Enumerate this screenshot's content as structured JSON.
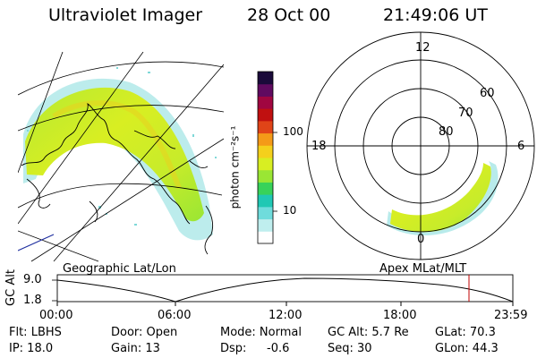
{
  "header": {
    "instrument": "Ultraviolet Imager",
    "date": "28 Oct 00",
    "time": "21:49:06 UT"
  },
  "colorbar": {
    "unit_label": "photon cm⁻²s⁻¹",
    "ticks": [
      "100",
      "10"
    ],
    "scale": "log",
    "colors": [
      "#ffffff",
      "#bfeeee",
      "#6fdcdc",
      "#20c8b4",
      "#38d25a",
      "#9ae634",
      "#d8ee22",
      "#f4d01c",
      "#f49a18",
      "#e04418",
      "#c01010",
      "#a00640",
      "#600a60",
      "#1a0a3a"
    ]
  },
  "geo_panel": {
    "label": "Geographic Lat/Lon"
  },
  "mlt_panel": {
    "label": "Apex MLat/MLT",
    "hour_labels": {
      "top": "12",
      "left": "18",
      "right": "6",
      "bottom": "0"
    },
    "lat_labels": [
      "60",
      "70",
      "80"
    ]
  },
  "altitude_plot": {
    "ylabel": "GC Alt",
    "yticks": [
      "9.0",
      "1.8"
    ],
    "xticks": [
      "00:00",
      "06:00",
      "12:00",
      "18:00",
      "23:59"
    ],
    "current_time_marker_color": "#c00000"
  },
  "status": {
    "filter": "Flt: LBHS",
    "ip": "IP: 18.0",
    "door": "Door: Open",
    "gain": "Gain: 13",
    "mode": "Mode: Normal",
    "dsp_label": "Dsp:",
    "dsp_value": "-0.6",
    "gc_alt": "GC Alt: 5.7 Re",
    "seq": "Seq: 30",
    "glat": "GLat: 70.3",
    "glon": "GLon: 44.3"
  }
}
